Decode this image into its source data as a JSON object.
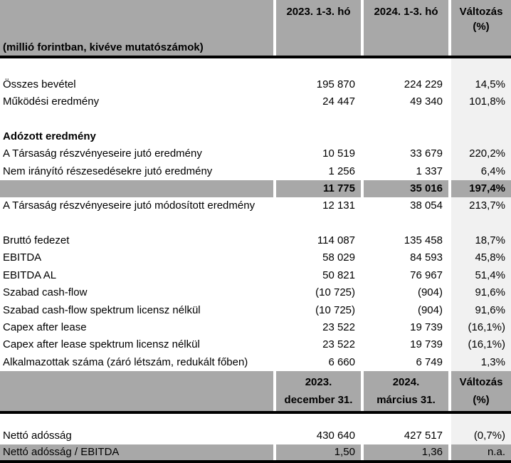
{
  "header1": {
    "label": "(millió forintban, kivéve mutatószámok)",
    "columns": [
      "2023. 1-3. hó",
      "2024. 1-3. hó",
      "Változás\n(%)"
    ]
  },
  "rows1": [
    {
      "type": "blank",
      "label": "",
      "v2023": "",
      "v2024": "",
      "change": ""
    },
    {
      "type": "normal",
      "label": "Összes bevétel",
      "v2023": "195 870",
      "v2024": "224 229",
      "change": "14,5%"
    },
    {
      "type": "normal",
      "label": "Működési eredmény",
      "v2023": "24 447",
      "v2024": "49 340",
      "change": "101,8%"
    },
    {
      "type": "blank",
      "label": "",
      "v2023": "",
      "v2024": "",
      "change": ""
    },
    {
      "type": "section",
      "label": "Adózott eredmény",
      "v2023": "",
      "v2024": "",
      "change": ""
    },
    {
      "type": "normal",
      "label": "A Társaság részvényeseire jutó eredmény",
      "v2023": "10 519",
      "v2024": "33 679",
      "change": "220,2%"
    },
    {
      "type": "normal",
      "label": "Nem irányító részesedésekre jutó eredmény",
      "v2023": "1 256",
      "v2024": "1 337",
      "change": "6,4%"
    },
    {
      "type": "subtotal",
      "label": "",
      "v2023": "11 775",
      "v2024": "35 016",
      "change": "197,4%"
    },
    {
      "type": "normal",
      "label": "A Társaság részvényeseire jutó módosított eredmény",
      "v2023": "12 131",
      "v2024": "38 054",
      "change": "213,7%"
    },
    {
      "type": "blank",
      "label": "",
      "v2023": "",
      "v2024": "",
      "change": ""
    },
    {
      "type": "normal",
      "label": "Bruttó fedezet",
      "v2023": "114 087",
      "v2024": "135 458",
      "change": "18,7%"
    },
    {
      "type": "normal",
      "label": "EBITDA",
      "v2023": "58 029",
      "v2024": "84 593",
      "change": "45,8%"
    },
    {
      "type": "normal",
      "label": "EBITDA AL",
      "v2023": "50 821",
      "v2024": "76 967",
      "change": "51,4%"
    },
    {
      "type": "normal",
      "label": "Szabad cash-flow",
      "v2023": "(10 725)",
      "v2024": "(904)",
      "change": "91,6%"
    },
    {
      "type": "normal",
      "label": "Szabad cash-flow spektrum licensz nélkül",
      "v2023": "(10 725)",
      "v2024": "(904)",
      "change": "91,6%"
    },
    {
      "type": "normal",
      "label": "Capex after lease",
      "v2023": "23 522",
      "v2024": "19 739",
      "change": "(16,1%)"
    },
    {
      "type": "normal",
      "label": "Capex after lease spektrum licensz nélkül",
      "v2023": "23 522",
      "v2024": "19 739",
      "change": "(16,1%)"
    },
    {
      "type": "normal",
      "label": "Alkalmazottak száma (záró létszám, redukált főben)",
      "v2023": "6 660",
      "v2024": "6 749",
      "change": "1,3%"
    }
  ],
  "header2": {
    "label": "",
    "columns": [
      "2023.\ndecember 31.",
      "2024.\nmárcius 31.",
      "Változás\n(%)"
    ]
  },
  "rows2": [
    {
      "type": "blank",
      "label": "",
      "v2023": "",
      "v2024": "",
      "change": ""
    },
    {
      "type": "normal",
      "label": "Nettó adósság",
      "v2023": "430 640",
      "v2024": "427 517",
      "change": "(0,7%)"
    },
    {
      "type": "gray",
      "label": "Nettó adósság / EBITDA",
      "v2023": "1,50",
      "v2024": "1,36",
      "change": "n.a."
    }
  ],
  "colors": {
    "header_gray": "#a8a8a8",
    "change_column_gray": "#f1f1f1",
    "rule_black": "#000000"
  }
}
